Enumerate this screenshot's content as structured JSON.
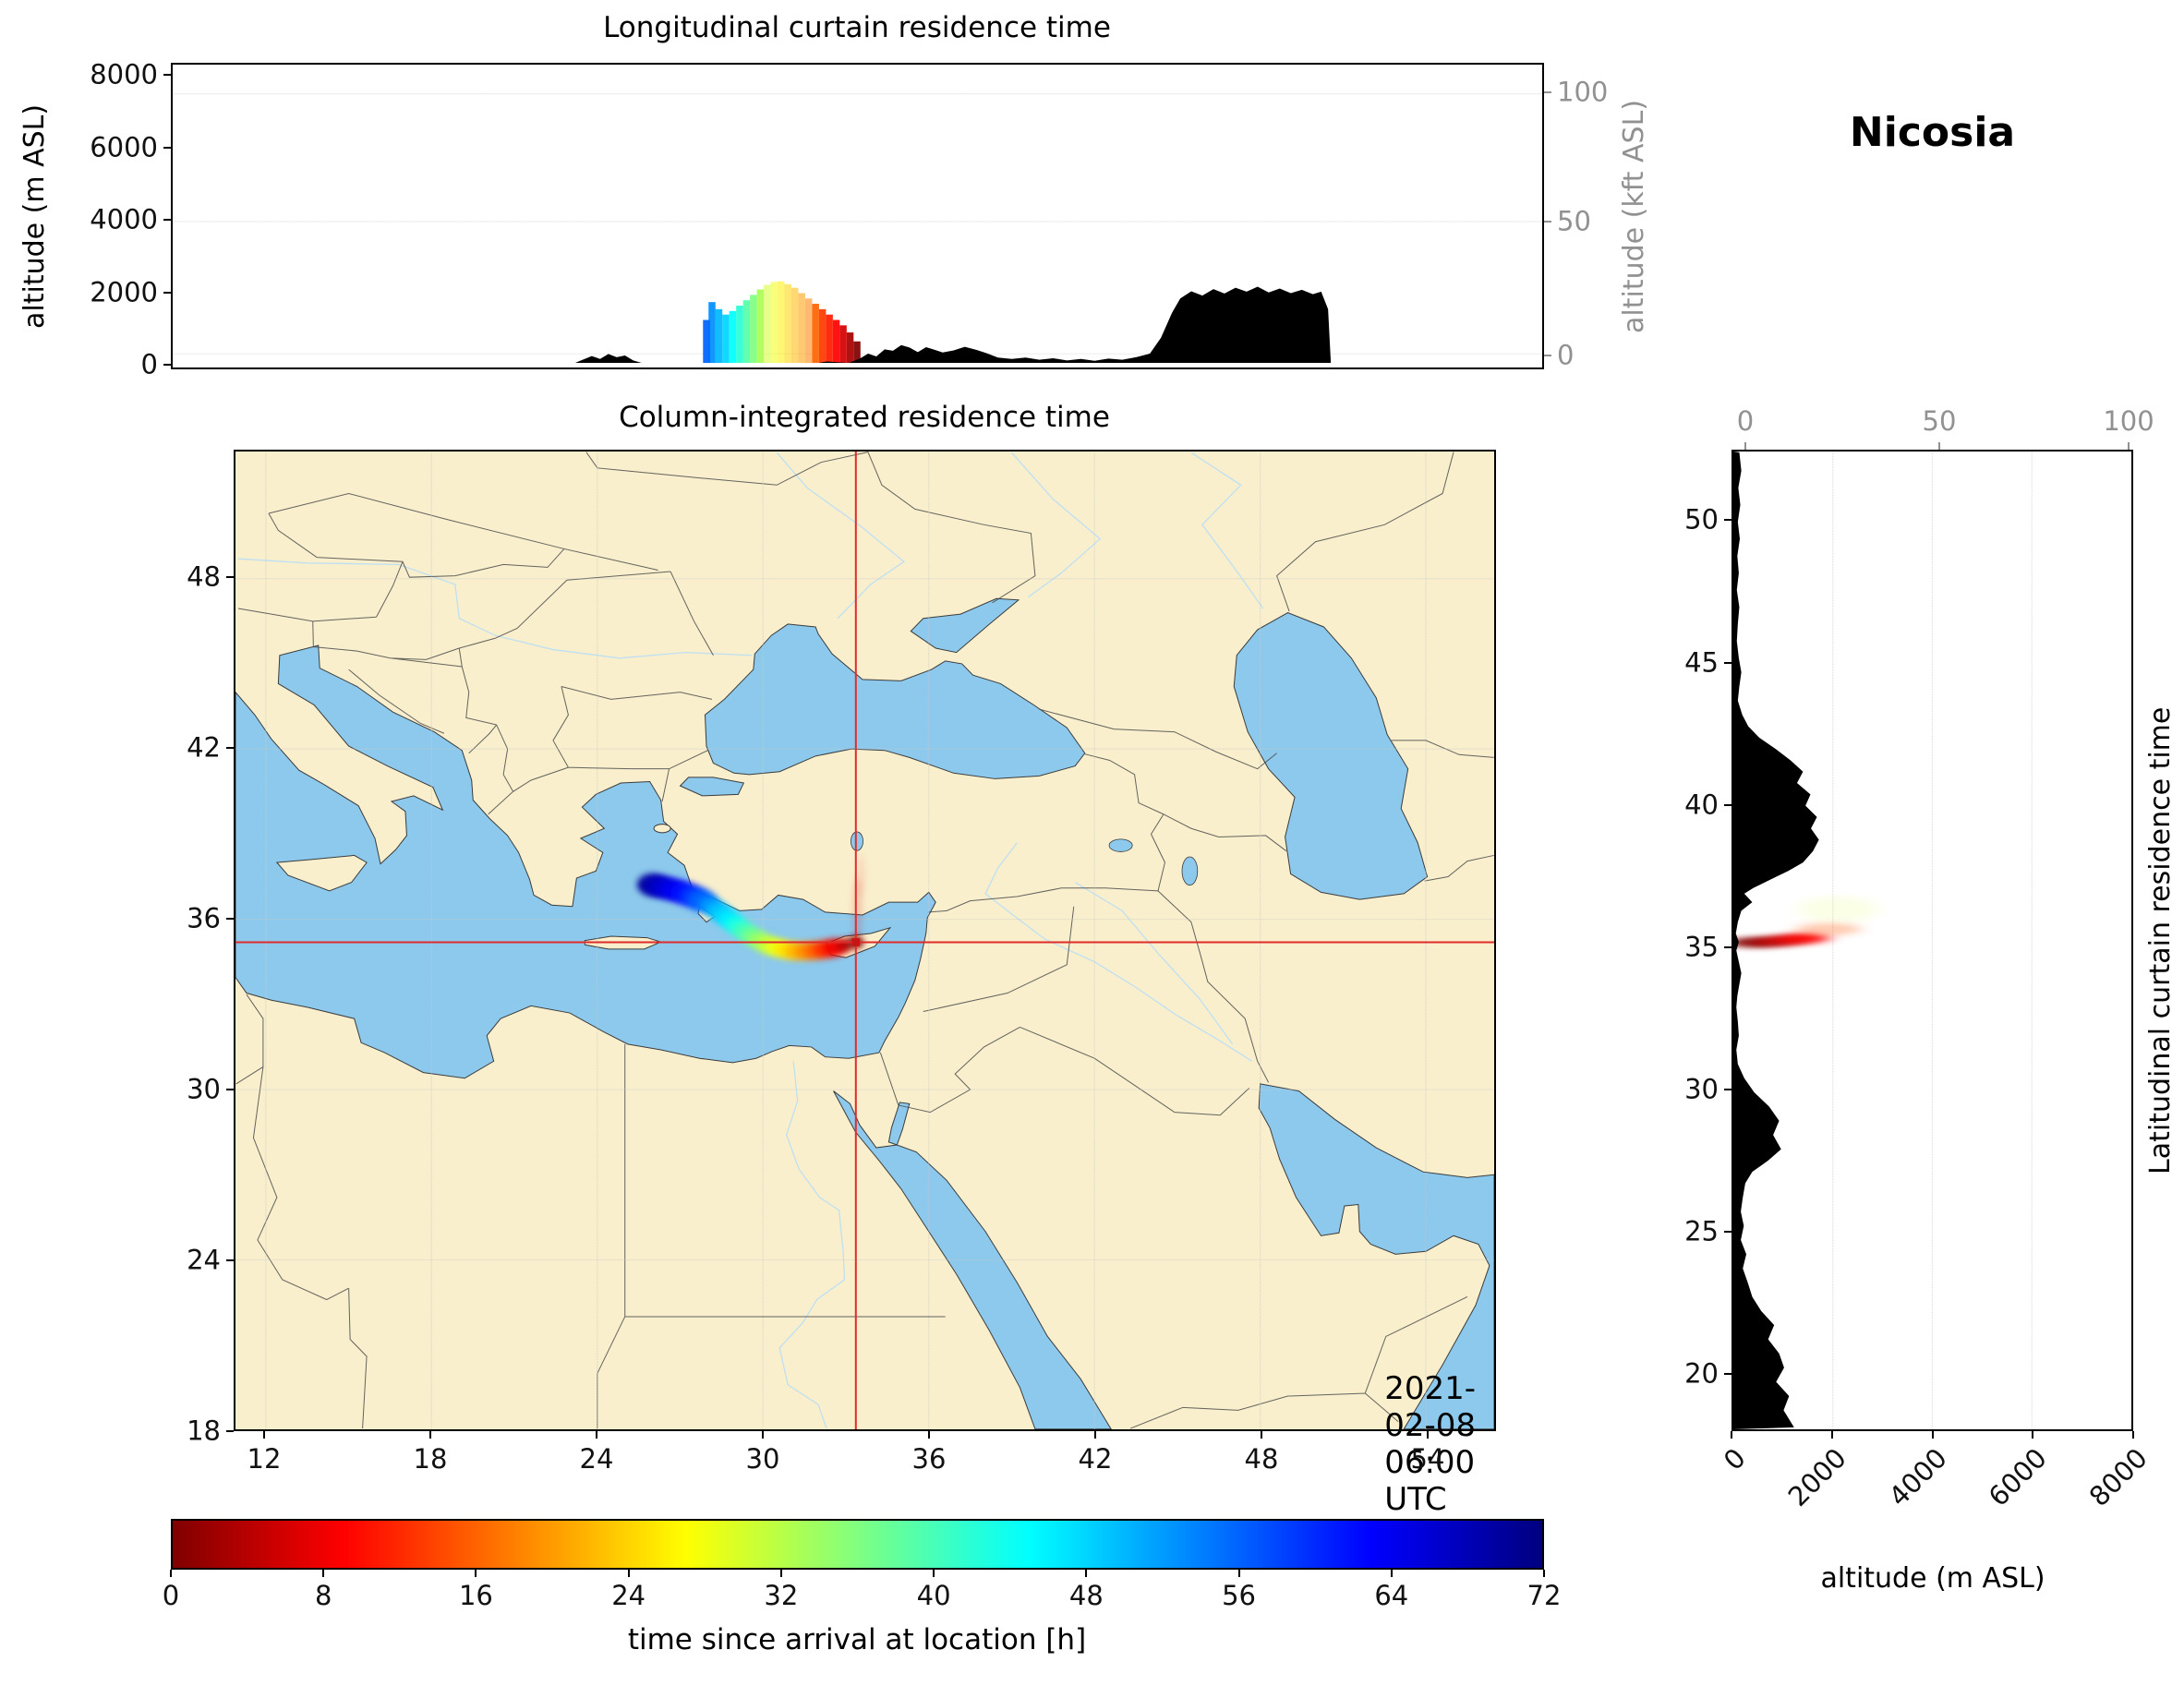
{
  "title_station": "Nicosia",
  "datetime_label": "2021-02-08 06:00 UTC",
  "panels": {
    "longitudinal": {
      "title": "Longitudinal curtain residence time",
      "ylabel_left": "altitude (m ASL)",
      "ylabel_right": "altitude (kft ASL)",
      "yticks_left": [
        0,
        2000,
        4000,
        6000,
        8000
      ],
      "yticks_right": [
        0,
        50,
        100
      ]
    },
    "map": {
      "title": "Column-integrated residence time",
      "xticks": [
        12,
        18,
        24,
        30,
        36,
        42,
        48,
        54
      ],
      "yticks": [
        18,
        24,
        30,
        36,
        42,
        48
      ],
      "date_label": "2021-02-08 06:00 UTC"
    },
    "latitudinal": {
      "title_right": "Latitudinal curtain residence time",
      "xlabel": "altitude (m ASL)",
      "xticks": [
        0,
        2000,
        4000,
        6000,
        8000
      ],
      "xticks_top": [
        0,
        50,
        100
      ],
      "yticks": [
        20,
        25,
        30,
        35,
        40,
        45,
        50
      ]
    },
    "colorbar": {
      "label": "time since arrival at location [h]",
      "ticks": [
        0,
        8,
        16,
        24,
        32,
        40,
        48,
        56,
        64,
        72
      ]
    }
  },
  "chart_data": [
    {
      "type": "area",
      "name": "longitudinal-curtain",
      "title": "Longitudinal curtain residence time",
      "x_axis": "longitude_deg_east",
      "ylabel": "altitude (m ASL)",
      "ylabel_right": "altitude (kft ASL)",
      "xlim": [
        8.63,
        58.2
      ],
      "ylim": [
        0,
        8300
      ],
      "terrain_profile_lon_alt": [
        [
          8.63,
          0
        ],
        [
          23.2,
          0
        ],
        [
          23.5,
          100
        ],
        [
          23.8,
          190
        ],
        [
          24.1,
          110
        ],
        [
          24.4,
          250
        ],
        [
          24.7,
          160
        ],
        [
          25.0,
          210
        ],
        [
          25.3,
          70
        ],
        [
          25.6,
          0
        ],
        [
          27.0,
          0
        ],
        [
          32.0,
          0
        ],
        [
          32.3,
          40
        ],
        [
          32.7,
          20
        ],
        [
          33.1,
          0
        ],
        [
          33.5,
          120
        ],
        [
          33.8,
          260
        ],
        [
          34.1,
          180
        ],
        [
          34.4,
          380
        ],
        [
          34.7,
          340
        ],
        [
          35.0,
          500
        ],
        [
          35.3,
          430
        ],
        [
          35.6,
          300
        ],
        [
          35.9,
          440
        ],
        [
          36.2,
          370
        ],
        [
          36.5,
          290
        ],
        [
          36.9,
          350
        ],
        [
          37.3,
          450
        ],
        [
          37.7,
          370
        ],
        [
          38.1,
          270
        ],
        [
          38.5,
          150
        ],
        [
          39.0,
          110
        ],
        [
          39.5,
          150
        ],
        [
          40.0,
          90
        ],
        [
          40.5,
          130
        ],
        [
          41.0,
          70
        ],
        [
          41.5,
          110
        ],
        [
          42.0,
          60
        ],
        [
          42.5,
          120
        ],
        [
          43.0,
          90
        ],
        [
          43.5,
          160
        ],
        [
          44.0,
          260
        ],
        [
          44.4,
          700
        ],
        [
          44.8,
          1400
        ],
        [
          45.1,
          1800
        ],
        [
          45.5,
          2000
        ],
        [
          45.9,
          1880
        ],
        [
          46.3,
          2060
        ],
        [
          46.7,
          1940
        ],
        [
          47.1,
          2100
        ],
        [
          47.5,
          1990
        ],
        [
          47.9,
          2130
        ],
        [
          48.3,
          1970
        ],
        [
          48.7,
          2080
        ],
        [
          49.1,
          1950
        ],
        [
          49.5,
          2040
        ],
        [
          49.9,
          1920
        ],
        [
          50.2,
          1990
        ],
        [
          50.45,
          1500
        ],
        [
          50.55,
          0
        ],
        [
          58.2,
          0
        ]
      ],
      "plume_columns_lon_topalt_hours": [
        [
          33.4,
          600,
          0
        ],
        [
          33.15,
          850,
          3
        ],
        [
          32.9,
          1050,
          6
        ],
        [
          32.65,
          1200,
          9
        ],
        [
          32.4,
          1350,
          11
        ],
        [
          32.15,
          1500,
          13
        ],
        [
          31.9,
          1650,
          16
        ],
        [
          31.65,
          1800,
          18
        ],
        [
          31.4,
          1950,
          20
        ],
        [
          31.15,
          2100,
          22
        ],
        [
          30.9,
          2200,
          24
        ],
        [
          30.65,
          2280,
          26
        ],
        [
          30.4,
          2260,
          28
        ],
        [
          30.15,
          2180,
          30
        ],
        [
          29.9,
          2050,
          33
        ],
        [
          29.65,
          1900,
          36
        ],
        [
          29.4,
          1750,
          39
        ],
        [
          29.15,
          1600,
          42
        ],
        [
          28.9,
          1450,
          45
        ],
        [
          28.65,
          1350,
          48
        ],
        [
          28.4,
          1500,
          50
        ],
        [
          28.15,
          1700,
          53
        ],
        [
          27.95,
          1200,
          56
        ]
      ]
    },
    {
      "type": "map",
      "name": "column-integrated-residence-time",
      "title": "Column-integrated residence time",
      "extent_lonlat": [
        10.9,
        56.47,
        18.03,
        52.48
      ],
      "timestamp": "2021-02-08 06:00 UTC",
      "receptor": {
        "name": "Nicosia",
        "lon": 33.36,
        "lat": 35.19
      },
      "crosshair_lonlat": [
        33.36,
        35.19
      ],
      "plume_track_lon_lat_hours": [
        [
          33.35,
          35.19,
          0
        ],
        [
          32.95,
          35.08,
          4
        ],
        [
          32.6,
          35.0,
          8
        ],
        [
          32.25,
          34.94,
          12
        ],
        [
          31.9,
          34.9,
          16
        ],
        [
          31.55,
          34.88,
          19
        ],
        [
          31.2,
          34.88,
          22
        ],
        [
          30.85,
          34.92,
          25
        ],
        [
          30.5,
          35.0,
          28
        ],
        [
          30.18,
          35.1,
          31
        ],
        [
          29.88,
          35.24,
          34
        ],
        [
          29.6,
          35.4,
          37
        ],
        [
          29.33,
          35.58,
          40
        ],
        [
          29.07,
          35.77,
          43
        ],
        [
          28.82,
          35.96,
          46
        ],
        [
          28.57,
          36.15,
          48
        ],
        [
          28.32,
          36.33,
          50
        ],
        [
          28.07,
          36.5,
          53
        ],
        [
          27.8,
          36.66,
          56
        ],
        [
          27.5,
          36.8,
          59
        ],
        [
          27.17,
          36.92,
          62
        ],
        [
          26.83,
          37.02,
          64
        ],
        [
          26.5,
          37.1,
          66
        ],
        [
          26.2,
          37.17,
          68
        ],
        [
          25.95,
          37.22,
          70
        ]
      ],
      "faint_wisps": [
        {
          "lon": 33.42,
          "lat": 36.35,
          "rx": 0.18,
          "ry": 1.15,
          "hours": 6,
          "opacity": 0.16
        },
        {
          "lon": 33.55,
          "lat": 37.55,
          "rx": 0.14,
          "ry": 0.75,
          "hours": 10,
          "opacity": 0.1
        }
      ]
    },
    {
      "type": "area",
      "name": "latitudinal-curtain",
      "xlabel": "altitude (m ASL)",
      "y_axis": "latitude_deg_north",
      "xlim": [
        0,
        8000
      ],
      "ylim": [
        18.03,
        52.48
      ],
      "terrain_profile_lat_alt": [
        [
          52.45,
          120
        ],
        [
          51.8,
          160
        ],
        [
          51.2,
          100
        ],
        [
          50.6,
          140
        ],
        [
          50.0,
          90
        ],
        [
          49.4,
          130
        ],
        [
          48.8,
          80
        ],
        [
          48.2,
          110
        ],
        [
          47.6,
          70
        ],
        [
          47.0,
          120
        ],
        [
          46.4,
          90
        ],
        [
          45.8,
          70
        ],
        [
          45.2,
          110
        ],
        [
          44.7,
          160
        ],
        [
          44.2,
          120
        ],
        [
          43.7,
          90
        ],
        [
          43.2,
          180
        ],
        [
          42.8,
          300
        ],
        [
          42.4,
          520
        ],
        [
          42.0,
          850
        ],
        [
          41.6,
          1150
        ],
        [
          41.2,
          1400
        ],
        [
          40.8,
          1280
        ],
        [
          40.4,
          1550
        ],
        [
          40.0,
          1450
        ],
        [
          39.6,
          1680
        ],
        [
          39.2,
          1560
        ],
        [
          38.8,
          1720
        ],
        [
          38.4,
          1600
        ],
        [
          38.0,
          1400
        ],
        [
          37.7,
          1100
        ],
        [
          37.4,
          750
        ],
        [
          37.1,
          400
        ],
        [
          36.9,
          220
        ],
        [
          36.6,
          380
        ],
        [
          36.3,
          160
        ],
        [
          35.9,
          90
        ],
        [
          35.5,
          50
        ],
        [
          35.2,
          110
        ],
        [
          34.9,
          60
        ],
        [
          34.5,
          110
        ],
        [
          34.1,
          160
        ],
        [
          33.7,
          120
        ],
        [
          33.3,
          80
        ],
        [
          32.9,
          60
        ],
        [
          32.4,
          90
        ],
        [
          31.9,
          110
        ],
        [
          31.4,
          60
        ],
        [
          30.9,
          90
        ],
        [
          30.4,
          220
        ],
        [
          29.9,
          420
        ],
        [
          29.4,
          720
        ],
        [
          28.9,
          920
        ],
        [
          28.4,
          800
        ],
        [
          27.9,
          960
        ],
        [
          27.5,
          700
        ],
        [
          27.1,
          380
        ],
        [
          26.7,
          240
        ],
        [
          26.2,
          190
        ],
        [
          25.7,
          150
        ],
        [
          25.2,
          210
        ],
        [
          24.7,
          150
        ],
        [
          24.2,
          260
        ],
        [
          23.7,
          190
        ],
        [
          23.2,
          290
        ],
        [
          22.7,
          380
        ],
        [
          22.2,
          560
        ],
        [
          21.7,
          820
        ],
        [
          21.2,
          700
        ],
        [
          20.7,
          920
        ],
        [
          20.2,
          1020
        ],
        [
          19.7,
          860
        ],
        [
          19.2,
          1120
        ],
        [
          18.7,
          1010
        ],
        [
          18.1,
          1220
        ]
      ],
      "plume_cells_lat_alt_hours": [
        [
          35.18,
          350,
          0
        ],
        [
          35.2,
          750,
          3
        ],
        [
          35.27,
          1100,
          6
        ],
        [
          35.33,
          1450,
          9
        ]
      ],
      "faint_wisps": [
        {
          "lat": 35.65,
          "alt": 1900,
          "rx": 650,
          "ry": 0.22,
          "hours": 15,
          "opacity": 0.3
        },
        {
          "lat": 36.35,
          "alt": 2100,
          "rx": 800,
          "ry": 0.45,
          "hours": 30,
          "opacity": 0.12
        }
      ]
    },
    {
      "type": "colorbar",
      "label": "time since arrival at location [h]",
      "range_hours": [
        0,
        72
      ],
      "tick_hours": [
        0,
        8,
        16,
        24,
        32,
        40,
        48,
        56,
        64,
        72
      ],
      "colormap": "reversed jet: 0 h dark red, 12 h red-orange, 24 h yellow, 36 h green, 48 h cyan, 60 h blue, 72 h dark blue"
    }
  ]
}
